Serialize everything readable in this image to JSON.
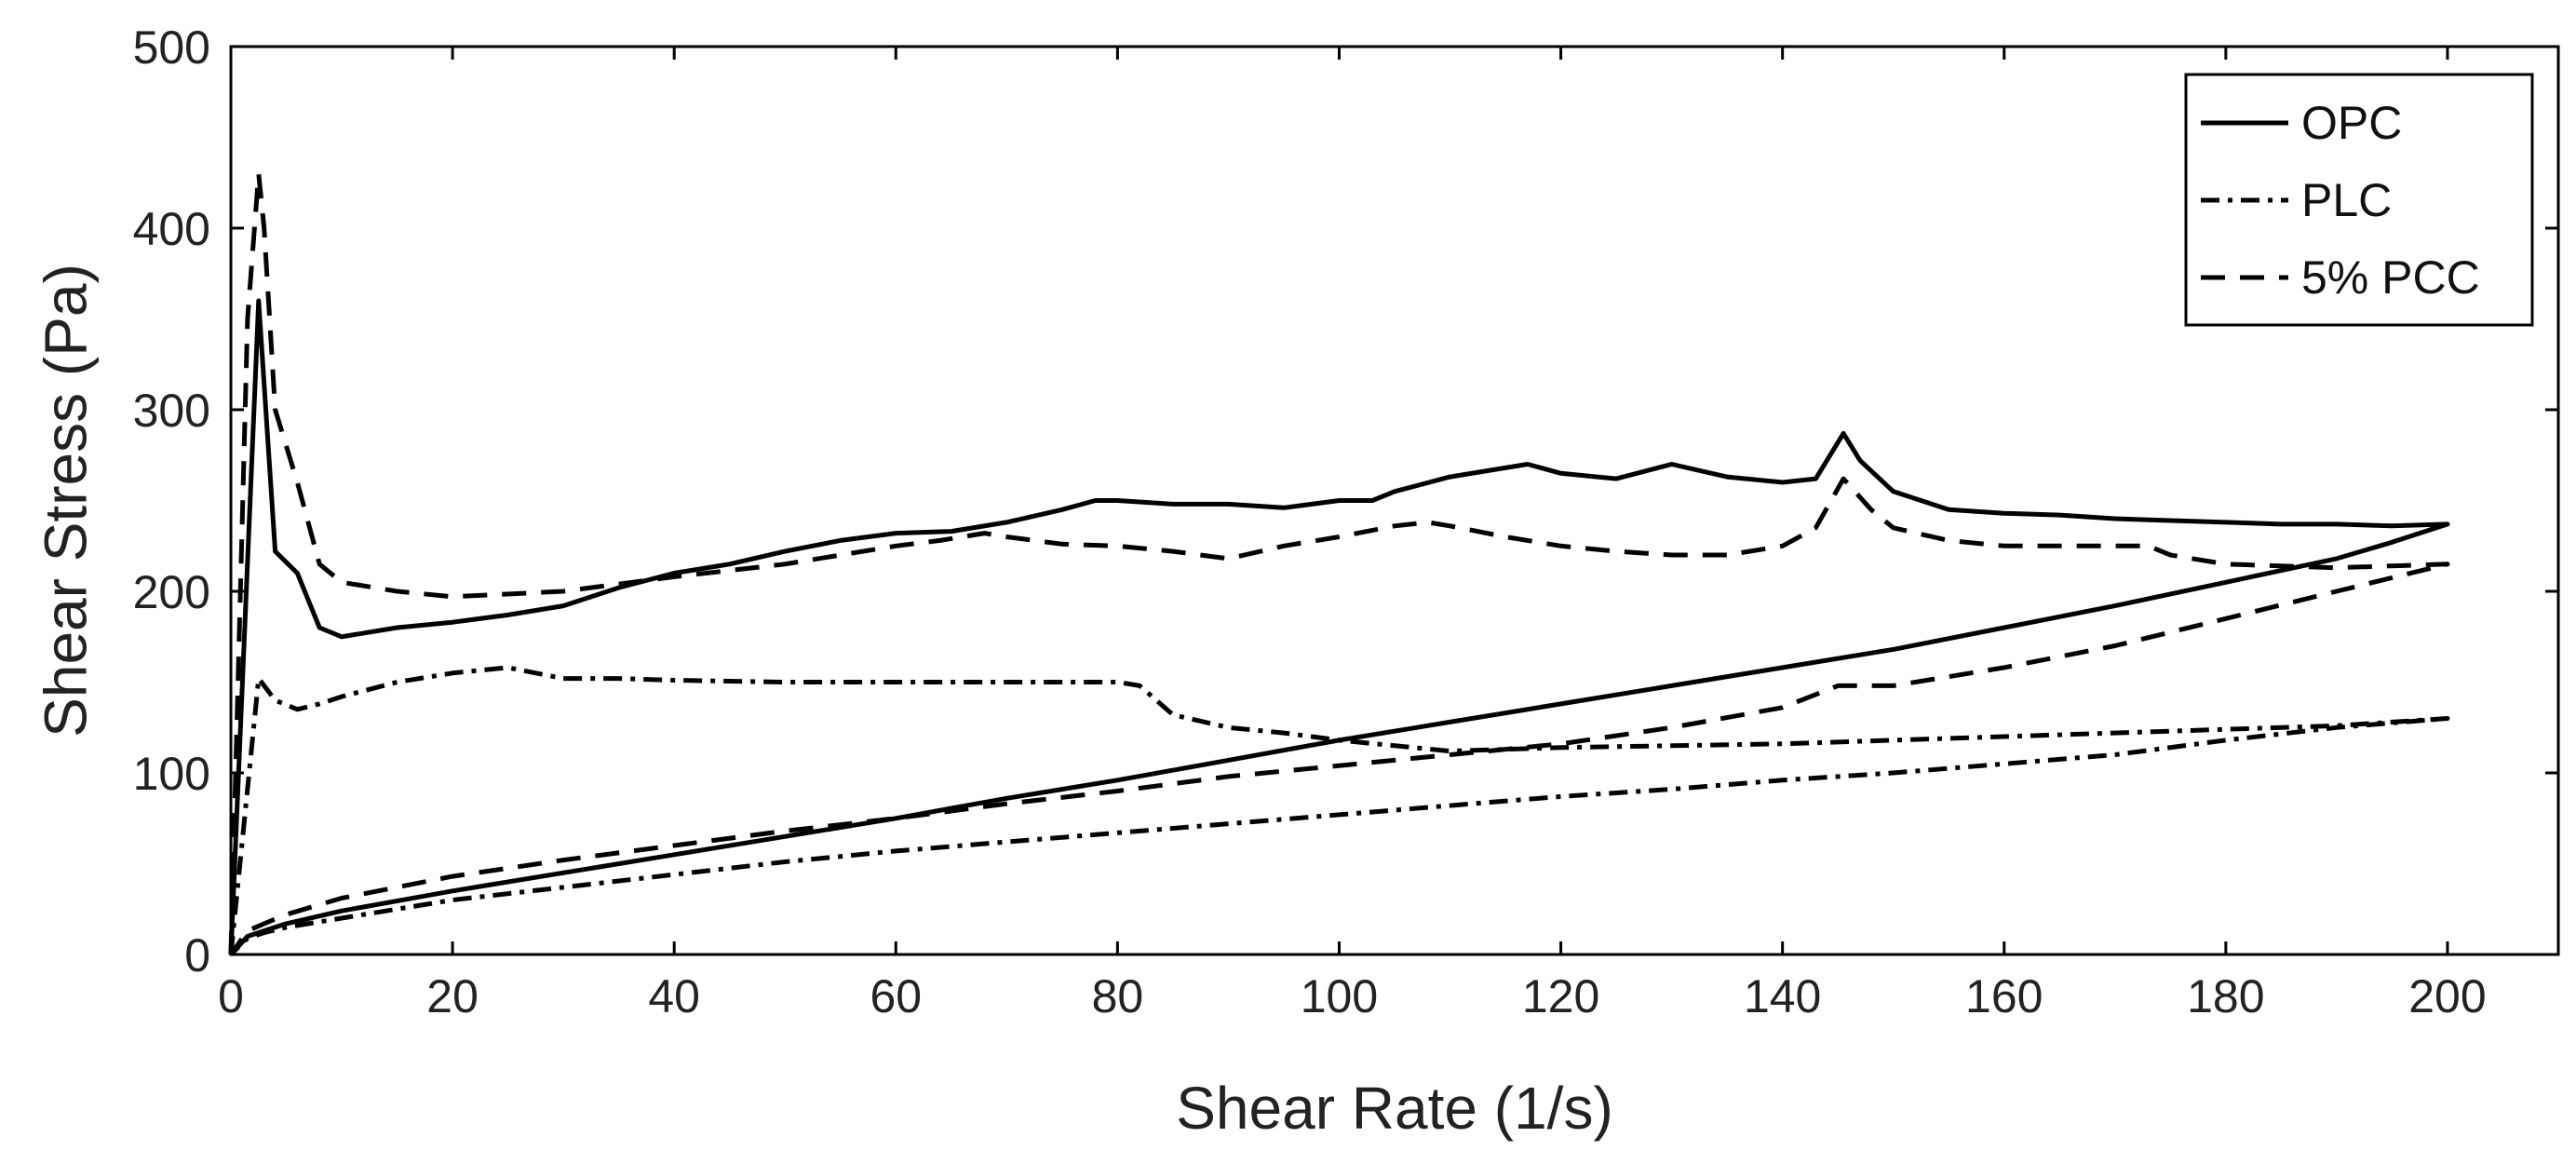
{
  "chart_data": {
    "type": "line",
    "title": "",
    "xlabel": "Shear Rate (1/s)",
    "ylabel": "Shear Stress (Pa)",
    "xlim": [
      0,
      210
    ],
    "ylim": [
      0,
      500
    ],
    "xticks": [
      0,
      20,
      40,
      60,
      80,
      100,
      120,
      140,
      160,
      180,
      200
    ],
    "yticks": [
      0,
      100,
      200,
      300,
      400,
      500
    ],
    "xtick_labels": [
      "0",
      "20",
      "40",
      "60",
      "80",
      "100",
      "120",
      "140",
      "160",
      "180",
      "200"
    ],
    "ytick_labels": [
      "0",
      "100",
      "200",
      "300",
      "400",
      "500"
    ],
    "grid": false,
    "legend_position": "top-right",
    "series": [
      {
        "name": "OPC",
        "style": "solid",
        "color": "#000000",
        "x": [
          0,
          2.5,
          4,
          6,
          8,
          10,
          15,
          20,
          25,
          30,
          35,
          40,
          45,
          50,
          55,
          60,
          65,
          70,
          75,
          78,
          80,
          85,
          90,
          95,
          100,
          103,
          105,
          110,
          115,
          117,
          120,
          125,
          130,
          135,
          140,
          143,
          145.5,
          147,
          150,
          155,
          160,
          165,
          170,
          175,
          180,
          185,
          190,
          195,
          200,
          195,
          190,
          180,
          170,
          160,
          150,
          140,
          130,
          120,
          110,
          100,
          90,
          80,
          70,
          60,
          50,
          40,
          30,
          20,
          10,
          5,
          3,
          1.5,
          0
        ],
        "y": [
          0,
          360,
          222,
          210,
          180,
          175,
          180,
          183,
          187,
          192,
          202,
          210,
          215,
          222,
          228,
          232,
          233,
          238,
          245,
          250,
          250,
          248,
          248,
          246,
          250,
          250,
          255,
          263,
          268,
          270,
          265,
          262,
          270,
          263,
          260,
          262,
          287,
          272,
          255,
          245,
          243,
          242,
          240,
          239,
          238,
          237,
          237,
          236,
          237,
          227,
          218,
          205,
          192,
          180,
          168,
          158,
          148,
          138,
          128,
          118,
          107,
          96,
          86,
          75,
          65,
          55,
          45,
          35,
          24,
          17,
          13,
          10,
          0
        ]
      },
      {
        "name": "PLC",
        "style": "dash-dot",
        "color": "#000000",
        "x": [
          0,
          2.5,
          4,
          6,
          8,
          10,
          15,
          20,
          25,
          30,
          35,
          40,
          50,
          60,
          70,
          80,
          82,
          85,
          90,
          95,
          100,
          105,
          110,
          120,
          130,
          140,
          150,
          160,
          170,
          180,
          190,
          200,
          190,
          180,
          170,
          160,
          150,
          140,
          130,
          120,
          110,
          100,
          90,
          80,
          70,
          60,
          50,
          40,
          30,
          20,
          10,
          5,
          3,
          1.5,
          0
        ],
        "y": [
          0,
          152,
          140,
          135,
          138,
          142,
          150,
          155,
          158,
          152,
          152,
          151,
          150,
          150,
          150,
          150,
          148,
          132,
          125,
          122,
          118,
          115,
          112,
          114,
          115,
          116,
          118,
          120,
          122,
          124,
          126,
          130,
          125,
          118,
          110,
          105,
          100,
          96,
          91,
          87,
          82,
          77,
          72,
          67,
          62,
          57,
          51,
          44,
          37,
          30,
          20,
          15,
          12,
          9,
          0
        ]
      },
      {
        "name": "5% PCC",
        "style": "dashed",
        "color": "#000000",
        "x": [
          0,
          1.5,
          2.5,
          3,
          4,
          6,
          8,
          10,
          15,
          20,
          30,
          40,
          50,
          60,
          64,
          68,
          70,
          75,
          80,
          85,
          90,
          95,
          100,
          105,
          108,
          110,
          115,
          120,
          125,
          130,
          135,
          140,
          143,
          145.5,
          148,
          150,
          155,
          160,
          165,
          170,
          173,
          175,
          180,
          190,
          200,
          190,
          180,
          170,
          160,
          150,
          145,
          140,
          130,
          120,
          110,
          100,
          90,
          80,
          70,
          60,
          50,
          40,
          30,
          20,
          10,
          5,
          3,
          1.5,
          0
        ],
        "y": [
          0,
          350,
          430,
          400,
          300,
          260,
          215,
          205,
          200,
          197,
          200,
          208,
          215,
          225,
          228,
          232,
          230,
          226,
          225,
          222,
          218,
          225,
          230,
          236,
          238,
          236,
          230,
          225,
          222,
          220,
          220,
          225,
          235,
          262,
          245,
          235,
          228,
          225,
          225,
          225,
          225,
          220,
          215,
          213,
          215,
          200,
          185,
          170,
          158,
          148,
          148,
          136,
          125,
          116,
          110,
          104,
          98,
          90,
          83,
          75,
          68,
          60,
          52,
          43,
          31,
          22,
          17,
          13,
          0
        ]
      }
    ]
  }
}
